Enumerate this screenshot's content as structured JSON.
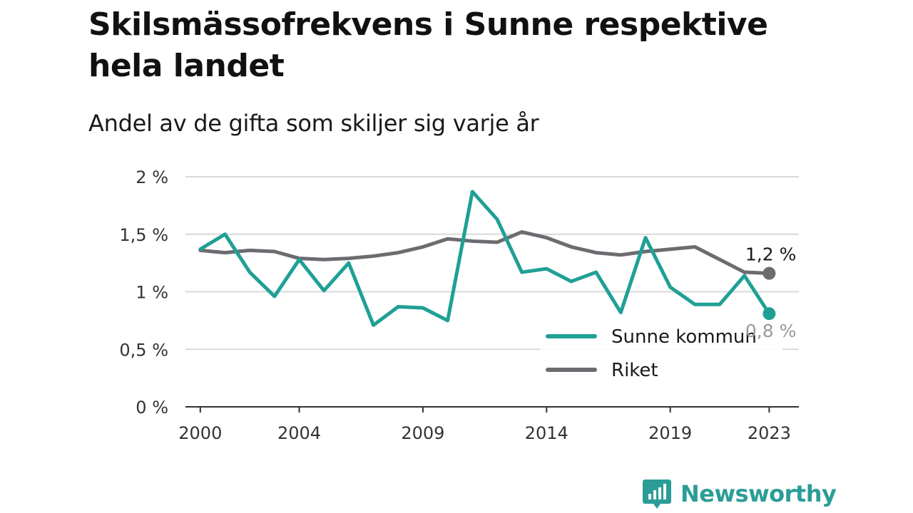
{
  "brand": {
    "name": "Newsworthy",
    "color": "#2a9d96"
  },
  "chart_data": {
    "type": "line",
    "title": "Skilsmässofrekvens i Sunne respektive hela landet",
    "subtitle": "Andel av de gifta som skiljer sig varje år",
    "xlabel": "",
    "ylabel": "",
    "x": [
      2000,
      2001,
      2002,
      2003,
      2004,
      2005,
      2006,
      2007,
      2008,
      2009,
      2010,
      2011,
      2012,
      2013,
      2014,
      2015,
      2016,
      2017,
      2018,
      2019,
      2020,
      2021,
      2022,
      2023
    ],
    "xlim": [
      1999.4,
      2024.2
    ],
    "x_ticks": [
      2000,
      2004,
      2009,
      2014,
      2019,
      2023
    ],
    "x_tick_labels": [
      "2000",
      "2004",
      "2009",
      "2014",
      "2019",
      "2023"
    ],
    "ylim": [
      0,
      2
    ],
    "y_ticks": [
      0,
      0.5,
      1,
      1.5,
      2
    ],
    "y_tick_labels": [
      "0 %",
      "0,5 %",
      "1 %",
      "1,5 %",
      "2 %"
    ],
    "grid": true,
    "legend_position": "bottom-right",
    "series": [
      {
        "name": "Sunne kommun",
        "color": "#1fa095",
        "values": [
          1.37,
          1.5,
          1.17,
          0.96,
          1.28,
          1.01,
          1.25,
          0.71,
          0.87,
          0.86,
          0.75,
          1.87,
          1.63,
          1.17,
          1.2,
          1.09,
          1.17,
          0.82,
          1.47,
          1.04,
          0.89,
          0.89,
          1.14,
          0.81
        ],
        "end_label": "0,8 %"
      },
      {
        "name": "Riket",
        "color": "#6c6b70",
        "values": [
          1.36,
          1.34,
          1.36,
          1.35,
          1.29,
          1.28,
          1.29,
          1.31,
          1.34,
          1.39,
          1.46,
          1.44,
          1.43,
          1.52,
          1.47,
          1.39,
          1.34,
          1.32,
          1.35,
          1.37,
          1.39,
          1.28,
          1.17,
          1.16
        ],
        "end_label": "1,2 %"
      }
    ]
  }
}
